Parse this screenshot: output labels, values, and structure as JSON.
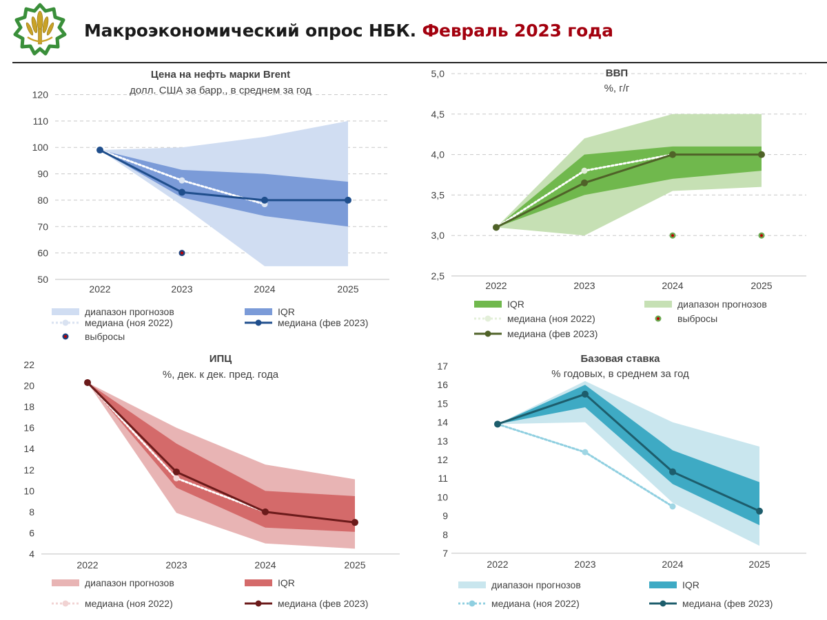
{
  "header": {
    "title_main": "Макроэкономический опрос НБК.",
    "title_accent": "Февраль 2023 года",
    "logo_icon": "nbk-emblem-icon",
    "title_color": "#1a1a1a",
    "accent_color": "#a3000e"
  },
  "chart_data": [
    {
      "type": "area",
      "title": "Цена на нефть марки Brent",
      "subtitle": "долл. США за барр., в среднем за год",
      "x": [
        "2022",
        "2023",
        "2024",
        "2025"
      ],
      "ylim": [
        50,
        120
      ],
      "yticks": [
        50,
        60,
        70,
        80,
        90,
        100,
        110,
        120
      ],
      "ytick_labels": [
        "50",
        "60",
        "70",
        "80",
        "90",
        "100",
        "110",
        "120"
      ],
      "grid": true,
      "range": {
        "name": "диапазон прогнозов",
        "low": [
          99,
          78,
          55,
          55
        ],
        "high": [
          99,
          100,
          104,
          110
        ]
      },
      "iqr": {
        "name": "IQR",
        "low": [
          99,
          81,
          74,
          70
        ],
        "high": [
          99,
          91.5,
          90,
          87
        ]
      },
      "median_prev": {
        "name": "медиана (ноя 2022)",
        "values": [
          99,
          87.5,
          78.5,
          null
        ]
      },
      "median_curr": {
        "name": "медиана (фев 2023)",
        "values": [
          99,
          83,
          80,
          80
        ]
      },
      "outliers": {
        "name": "выбросы",
        "points": [
          {
            "x": "2023",
            "y": 60
          }
        ]
      },
      "colors": {
        "range": "#d0ddf2",
        "iqr": "#7b9bd8",
        "median_prev": "#ffffff",
        "median_prev_marker": "#dce5f3",
        "median_curr": "#1f4e8c",
        "outlier": "#1f3f7a",
        "outlier_center": "#c00000"
      },
      "legend": [
        {
          "label": "диапазон прогнозов",
          "kind": "band",
          "color": "#d0ddf2"
        },
        {
          "label": "IQR",
          "kind": "band",
          "color": "#7b9bd8"
        },
        {
          "label": "медиана (ноя 2022)",
          "kind": "dotted",
          "color": "#d9e2f1"
        },
        {
          "label": "медиана (фев 2023)",
          "kind": "line",
          "color": "#1f4e8c"
        },
        {
          "label": "выбросы",
          "kind": "outlier",
          "color": "#1f3f7a"
        }
      ]
    },
    {
      "type": "area",
      "title": "ВВП",
      "subtitle": "%, г/г",
      "x": [
        "2022",
        "2023",
        "2024",
        "2025"
      ],
      "ylim": [
        2.5,
        5.0
      ],
      "yticks": [
        2.5,
        3.0,
        3.5,
        4.0,
        4.5,
        5.0
      ],
      "ytick_labels": [
        "2,5",
        "3,0",
        "3,5",
        "4,0",
        "4,5",
        "5,0"
      ],
      "grid": true,
      "range": {
        "name": "диапазон прогнозов",
        "low": [
          3.1,
          3.0,
          3.55,
          3.6
        ],
        "high": [
          3.1,
          4.2,
          4.5,
          4.5
        ]
      },
      "iqr": {
        "name": "IQR",
        "low": [
          3.1,
          3.5,
          3.7,
          3.8
        ],
        "high": [
          3.1,
          4.0,
          4.1,
          4.1
        ]
      },
      "median_prev": {
        "name": "медиана (ноя 2022)",
        "values": [
          3.1,
          3.8,
          4.0,
          null
        ]
      },
      "median_curr": {
        "name": "медиана (фев 2023)",
        "values": [
          3.1,
          3.65,
          4.0,
          4.0
        ]
      },
      "outliers": {
        "name": "выбросы",
        "points": [
          {
            "x": "2024",
            "y": 3.0
          },
          {
            "x": "2025",
            "y": 3.0
          }
        ]
      },
      "colors": {
        "range": "#c6e0b4",
        "iqr": "#70b84d",
        "median_prev": "#ffffff",
        "median_prev_marker": "#e3efd9",
        "median_curr": "#4f6228",
        "outlier": "#6aa84f",
        "outlier_center": "#c00000"
      },
      "legend": [
        {
          "label": "IQR",
          "kind": "band",
          "color": "#70b84d"
        },
        {
          "label": "диапазон прогнозов",
          "kind": "band",
          "color": "#c6e0b4"
        },
        {
          "label": "медиана (ноя 2022)",
          "kind": "dotted",
          "color": "#e3efd9"
        },
        {
          "label": "выбросы",
          "kind": "outlier",
          "color": "#6aa84f"
        },
        {
          "label": "медиана (фев 2023)",
          "kind": "line",
          "color": "#4f6228"
        }
      ]
    },
    {
      "type": "area",
      "title": "ИПЦ",
      "subtitle": "%, дек. к дек. пред. года",
      "x": [
        "2022",
        "2023",
        "2024",
        "2025"
      ],
      "ylim": [
        4,
        22
      ],
      "yticks": [
        4,
        6,
        8,
        10,
        12,
        14,
        16,
        18,
        20,
        22
      ],
      "ytick_labels": [
        "4",
        "6",
        "8",
        "10",
        "12",
        "14",
        "16",
        "18",
        "20",
        "22"
      ],
      "grid": false,
      "range": {
        "name": "диапазон прогнозов",
        "low": [
          20.3,
          7.9,
          5.0,
          4.5
        ],
        "high": [
          20.3,
          16.0,
          12.5,
          11.1
        ]
      },
      "iqr": {
        "name": "IQR",
        "low": [
          20.3,
          10.3,
          6.5,
          6.1
        ],
        "high": [
          20.3,
          14.5,
          10.0,
          9.5
        ]
      },
      "median_prev": {
        "name": "медиана (ноя 2022)",
        "values": [
          20.3,
          11.2,
          8.0,
          null
        ]
      },
      "median_curr": {
        "name": "медиана (фев 2023)",
        "values": [
          20.3,
          11.8,
          8.0,
          7.0
        ]
      },
      "outliers": {
        "name": "",
        "points": []
      },
      "colors": {
        "range": "#e8b4b4",
        "iqr": "#d46a6a",
        "median_prev": "#ffffff",
        "median_prev_marker": "#f3d6d6",
        "median_curr": "#6b1a1a"
      },
      "legend": [
        {
          "label": "диапазон прогнозов",
          "kind": "band",
          "color": "#e8b4b4"
        },
        {
          "label": "IQR",
          "kind": "band",
          "color": "#d46a6a"
        },
        {
          "label": "медиана (ноя 2022)",
          "kind": "dotted",
          "color": "#f1d3d3"
        },
        {
          "label": "медиана (фев 2023)",
          "kind": "line",
          "color": "#6b1a1a"
        }
      ]
    },
    {
      "type": "area",
      "title": "Базовая ставка",
      "subtitle": "% годовых, в среднем за год",
      "x": [
        "2022",
        "2023",
        "2024",
        "2025"
      ],
      "ylim": [
        7,
        17
      ],
      "yticks": [
        7,
        8,
        9,
        10,
        11,
        12,
        13,
        14,
        15,
        16,
        17
      ],
      "ytick_labels": [
        "7",
        "8",
        "9",
        "10",
        "11",
        "12",
        "13",
        "14",
        "15",
        "16",
        "17"
      ],
      "grid": false,
      "range": {
        "name": "диапазон прогнозов",
        "low": [
          13.9,
          14.0,
          9.7,
          7.4
        ],
        "high": [
          13.9,
          16.2,
          14.0,
          12.7
        ]
      },
      "iqr": {
        "name": "IQR",
        "low": [
          13.9,
          14.8,
          10.7,
          8.5
        ],
        "high": [
          13.9,
          16.0,
          12.5,
          10.8
        ]
      },
      "median_prev": {
        "name": "медиана (ноя 2022)",
        "values": [
          13.9,
          12.4,
          9.5,
          null
        ]
      },
      "median_curr": {
        "name": "медиана (фев 2023)",
        "values": [
          13.9,
          15.5,
          11.35,
          9.25
        ]
      },
      "outliers": {
        "name": "",
        "points": []
      },
      "colors": {
        "range": "#c9e6ee",
        "iqr": "#3eaac4",
        "median_prev": "#8fcfe0",
        "median_prev_marker": "#9fd6e4",
        "median_curr": "#1d5d6c"
      },
      "legend": [
        {
          "label": "диапазон прогнозов",
          "kind": "band",
          "color": "#c9e6ee"
        },
        {
          "label": "IQR",
          "kind": "band",
          "color": "#3eaac4"
        },
        {
          "label": "медиана (ноя 2022)",
          "kind": "dotted",
          "color": "#8fcfe0"
        },
        {
          "label": "медиана (фев 2023)",
          "kind": "line",
          "color": "#1d5d6c"
        }
      ]
    }
  ]
}
